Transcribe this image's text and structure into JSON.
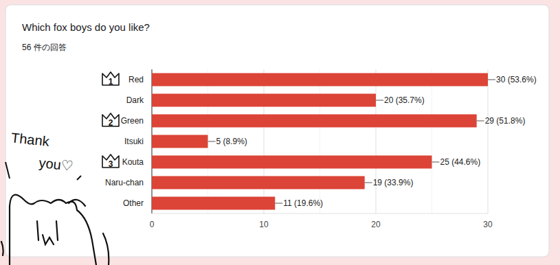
{
  "chart_data": {
    "type": "bar",
    "orientation": "horizontal",
    "title": "Which fox boys do you like?",
    "subtitle": "56 件の回答",
    "categories": [
      "Red",
      "Dark",
      "Green",
      "Itsuki",
      "Kouta",
      "Naru-chan",
      "Other"
    ],
    "values": [
      30,
      20,
      29,
      5,
      25,
      19,
      11
    ],
    "value_labels": [
      "30 (53.6%)",
      "20 (35.7%)",
      "29 (51.8%)",
      "5 (8.9%)",
      "25 (44.6%)",
      "19 (33.9%)",
      "11 (19.6%)"
    ],
    "data_labels": true,
    "color": "#db4437",
    "xlim": [
      0,
      30
    ],
    "xticks": [
      0,
      10,
      20,
      30
    ],
    "grid": true,
    "annotations": [
      {
        "text": "1",
        "category": "Red"
      },
      {
        "text": "2",
        "category": "Green"
      },
      {
        "text": "3",
        "category": "Kouta"
      },
      {
        "text": "Thank you♡"
      }
    ]
  }
}
